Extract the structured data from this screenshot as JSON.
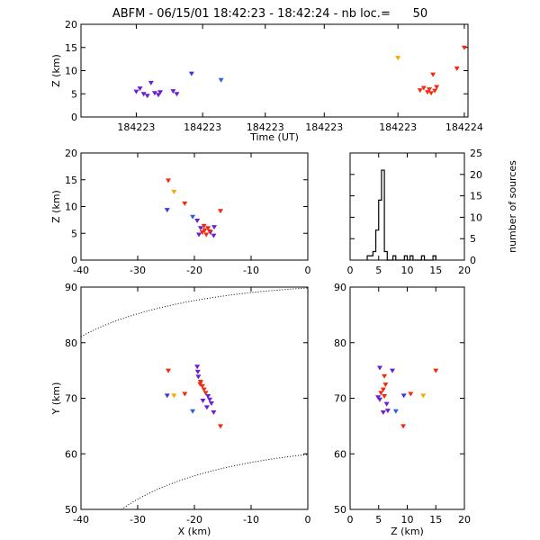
{
  "title": "ABFM - 06/15/01 18:42:23 - 18:42:24 - nb loc.=      50",
  "chart_data": [
    {
      "type": "scatter",
      "xlabel": "Time (UT)",
      "ylabel": "Z (km)",
      "x_tick_labels": [
        "184223",
        "184223",
        "184223",
        "184223",
        "184223",
        "184224"
      ],
      "ylim": [
        0,
        20
      ],
      "y_ticks": [
        0,
        5,
        10,
        15,
        20
      ],
      "points": [
        {
          "x": 0.15,
          "y": 5.5,
          "color": "#6a1fd0"
        },
        {
          "x": 0.16,
          "y": 6.2,
          "color": "#6a1fd0"
        },
        {
          "x": 0.17,
          "y": 5.0,
          "color": "#6a1fd0"
        },
        {
          "x": 0.18,
          "y": 4.6,
          "color": "#6a1fd0"
        },
        {
          "x": 0.19,
          "y": 7.4,
          "color": "#6a1fd0"
        },
        {
          "x": 0.2,
          "y": 5.2,
          "color": "#6a1fd0"
        },
        {
          "x": 0.21,
          "y": 4.8,
          "color": "#6a1fd0"
        },
        {
          "x": 0.215,
          "y": 5.4,
          "color": "#6a1fd0"
        },
        {
          "x": 0.25,
          "y": 5.6,
          "color": "#6a1fd0"
        },
        {
          "x": 0.26,
          "y": 5.0,
          "color": "#6a1fd0"
        },
        {
          "x": 0.3,
          "y": 9.4,
          "color": "#3a3adc"
        },
        {
          "x": 0.38,
          "y": 8.0,
          "color": "#2f5fe0"
        },
        {
          "x": 0.86,
          "y": 12.8,
          "color": "#f5a800"
        },
        {
          "x": 0.92,
          "y": 5.8,
          "color": "#f22a10"
        },
        {
          "x": 0.93,
          "y": 6.3,
          "color": "#f22a10"
        },
        {
          "x": 0.94,
          "y": 5.4,
          "color": "#f22a10"
        },
        {
          "x": 0.945,
          "y": 6.0,
          "color": "#f22a10"
        },
        {
          "x": 0.95,
          "y": 5.2,
          "color": "#f22a10"
        },
        {
          "x": 0.955,
          "y": 9.2,
          "color": "#f22a10"
        },
        {
          "x": 0.96,
          "y": 5.7,
          "color": "#f22a10"
        },
        {
          "x": 0.965,
          "y": 6.5,
          "color": "#f22a10"
        },
        {
          "x": 1.02,
          "y": 10.5,
          "color": "#f22a10"
        },
        {
          "x": 1.04,
          "y": 15.0,
          "color": "#f22a10"
        }
      ]
    },
    {
      "type": "scatter",
      "xlabel": "",
      "ylabel": "Z (km)",
      "xlim": [
        -40,
        0
      ],
      "x_ticks": [
        -40,
        -30,
        -20,
        -10,
        0
      ],
      "ylim": [
        0,
        20
      ],
      "y_ticks": [
        0,
        5,
        10,
        15,
        20
      ],
      "points": [
        {
          "x": -24.6,
          "y": 14.9,
          "color": "#f22a10"
        },
        {
          "x": -23.6,
          "y": 12.8,
          "color": "#f5a800"
        },
        {
          "x": -21.7,
          "y": 10.6,
          "color": "#f22a10"
        },
        {
          "x": -24.8,
          "y": 9.4,
          "color": "#3a3adc"
        },
        {
          "x": -15.4,
          "y": 9.2,
          "color": "#f22a10"
        },
        {
          "x": -20.3,
          "y": 8.1,
          "color": "#2f5fe0"
        },
        {
          "x": -19.5,
          "y": 7.4,
          "color": "#6a1fd0"
        },
        {
          "x": -16.5,
          "y": 6.2,
          "color": "#6a1fd0"
        },
        {
          "x": -18.9,
          "y": 6.0,
          "color": "#6a1fd0"
        },
        {
          "x": -17.2,
          "y": 5.2,
          "color": "#6a1fd0"
        },
        {
          "x": -19.2,
          "y": 4.8,
          "color": "#6a1fd0"
        },
        {
          "x": -16.6,
          "y": 4.6,
          "color": "#6a1fd0"
        },
        {
          "x": -18.2,
          "y": 5.6,
          "color": "#f22a10"
        },
        {
          "x": -17.6,
          "y": 6.0,
          "color": "#f22a10"
        },
        {
          "x": -18.6,
          "y": 5.2,
          "color": "#f22a10"
        },
        {
          "x": -17.9,
          "y": 4.8,
          "color": "#f22a10"
        },
        {
          "x": -17.3,
          "y": 5.4,
          "color": "#f22a10"
        },
        {
          "x": -18.3,
          "y": 6.4,
          "color": "#f22a10"
        }
      ]
    },
    {
      "type": "bar",
      "xlabel": "",
      "ylabel": "number of sources",
      "xlim": [
        0,
        20
      ],
      "x_ticks": [
        0,
        5,
        10,
        15,
        20
      ],
      "ylim": [
        0,
        25
      ],
      "y_ticks": [
        0,
        5,
        10,
        15,
        20,
        25
      ],
      "bins": [
        {
          "x0": 3.0,
          "x1": 4.0,
          "count": 1
        },
        {
          "x0": 4.0,
          "x1": 4.5,
          "count": 2
        },
        {
          "x0": 4.5,
          "x1": 5.0,
          "count": 7
        },
        {
          "x0": 5.0,
          "x1": 5.5,
          "count": 14
        },
        {
          "x0": 5.5,
          "x1": 6.0,
          "count": 21
        },
        {
          "x0": 6.0,
          "x1": 6.5,
          "count": 2
        },
        {
          "x0": 6.5,
          "x1": 7.5,
          "count": 0
        },
        {
          "x0": 7.5,
          "x1": 8.0,
          "count": 1
        },
        {
          "x0": 8.0,
          "x1": 9.5,
          "count": 0
        },
        {
          "x0": 9.5,
          "x1": 10.0,
          "count": 1
        },
        {
          "x0": 10.0,
          "x1": 10.5,
          "count": 0
        },
        {
          "x0": 10.5,
          "x1": 11.0,
          "count": 1
        },
        {
          "x0": 11.0,
          "x1": 12.5,
          "count": 0
        },
        {
          "x0": 12.5,
          "x1": 13.0,
          "count": 1
        },
        {
          "x0": 13.0,
          "x1": 14.5,
          "count": 0
        },
        {
          "x0": 14.5,
          "x1": 15.0,
          "count": 1
        }
      ]
    },
    {
      "type": "scatter",
      "xlabel": "X (km)",
      "ylabel": "Y (km)",
      "xlim": [
        -40,
        0
      ],
      "x_ticks": [
        -40,
        -30,
        -20,
        -10,
        0
      ],
      "ylim": [
        50,
        90
      ],
      "y_ticks": [
        50,
        60,
        70,
        80,
        90
      ],
      "points": [
        {
          "x": -24.6,
          "y": 75.0,
          "color": "#f22a10"
        },
        {
          "x": -23.6,
          "y": 70.5,
          "color": "#f5a800"
        },
        {
          "x": -24.8,
          "y": 70.5,
          "color": "#3a3adc"
        },
        {
          "x": -21.7,
          "y": 70.8,
          "color": "#f22a10"
        },
        {
          "x": -20.3,
          "y": 67.7,
          "color": "#2f5fe0"
        },
        {
          "x": -19.5,
          "y": 75.7,
          "color": "#6a1fd0"
        },
        {
          "x": -19.4,
          "y": 74.8,
          "color": "#6a1fd0"
        },
        {
          "x": -19.3,
          "y": 73.9,
          "color": "#6a1fd0"
        },
        {
          "x": -18.9,
          "y": 73.0,
          "color": "#f22a10"
        },
        {
          "x": -18.6,
          "y": 72.2,
          "color": "#f22a10"
        },
        {
          "x": -18.3,
          "y": 71.6,
          "color": "#f22a10"
        },
        {
          "x": -18.0,
          "y": 71.0,
          "color": "#f22a10"
        },
        {
          "x": -17.6,
          "y": 70.4,
          "color": "#6a1fd0"
        },
        {
          "x": -17.3,
          "y": 69.8,
          "color": "#6a1fd0"
        },
        {
          "x": -17.0,
          "y": 69.1,
          "color": "#6a1fd0"
        },
        {
          "x": -17.8,
          "y": 68.4,
          "color": "#6a1fd0"
        },
        {
          "x": -16.6,
          "y": 67.5,
          "color": "#6a1fd0"
        },
        {
          "x": -18.5,
          "y": 69.6,
          "color": "#6a1fd0"
        },
        {
          "x": -15.4,
          "y": 65.0,
          "color": "#f22a10"
        },
        {
          "x": -19.0,
          "y": 72.6,
          "color": "#f22a10"
        }
      ]
    },
    {
      "type": "scatter",
      "xlabel": "Z (km)",
      "ylabel": "",
      "xlim": [
        0,
        20
      ],
      "x_ticks": [
        0,
        5,
        10,
        15,
        20
      ],
      "ylim": [
        50,
        90
      ],
      "y_ticks": [
        50,
        60,
        70,
        80,
        90
      ],
      "points": [
        {
          "x": 15.0,
          "y": 75.0,
          "color": "#f22a10"
        },
        {
          "x": 12.8,
          "y": 70.5,
          "color": "#f5a800"
        },
        {
          "x": 9.4,
          "y": 70.5,
          "color": "#3a3adc"
        },
        {
          "x": 10.6,
          "y": 70.8,
          "color": "#f22a10"
        },
        {
          "x": 8.0,
          "y": 67.7,
          "color": "#2f5fe0"
        },
        {
          "x": 9.3,
          "y": 65.0,
          "color": "#f22a10"
        },
        {
          "x": 5.2,
          "y": 75.5,
          "color": "#6a1fd0"
        },
        {
          "x": 7.4,
          "y": 75.0,
          "color": "#6a1fd0"
        },
        {
          "x": 6.0,
          "y": 74.0,
          "color": "#f22a10"
        },
        {
          "x": 6.2,
          "y": 72.5,
          "color": "#f22a10"
        },
        {
          "x": 5.8,
          "y": 71.6,
          "color": "#f22a10"
        },
        {
          "x": 5.4,
          "y": 71.0,
          "color": "#f22a10"
        },
        {
          "x": 6.0,
          "y": 70.4,
          "color": "#f22a10"
        },
        {
          "x": 5.2,
          "y": 69.8,
          "color": "#6a1fd0"
        },
        {
          "x": 6.4,
          "y": 69.0,
          "color": "#6a1fd0"
        },
        {
          "x": 5.8,
          "y": 67.5,
          "color": "#6a1fd0"
        },
        {
          "x": 6.6,
          "y": 67.8,
          "color": "#6a1fd0"
        },
        {
          "x": 4.9,
          "y": 70.2,
          "color": "#6a1fd0"
        }
      ]
    }
  ]
}
